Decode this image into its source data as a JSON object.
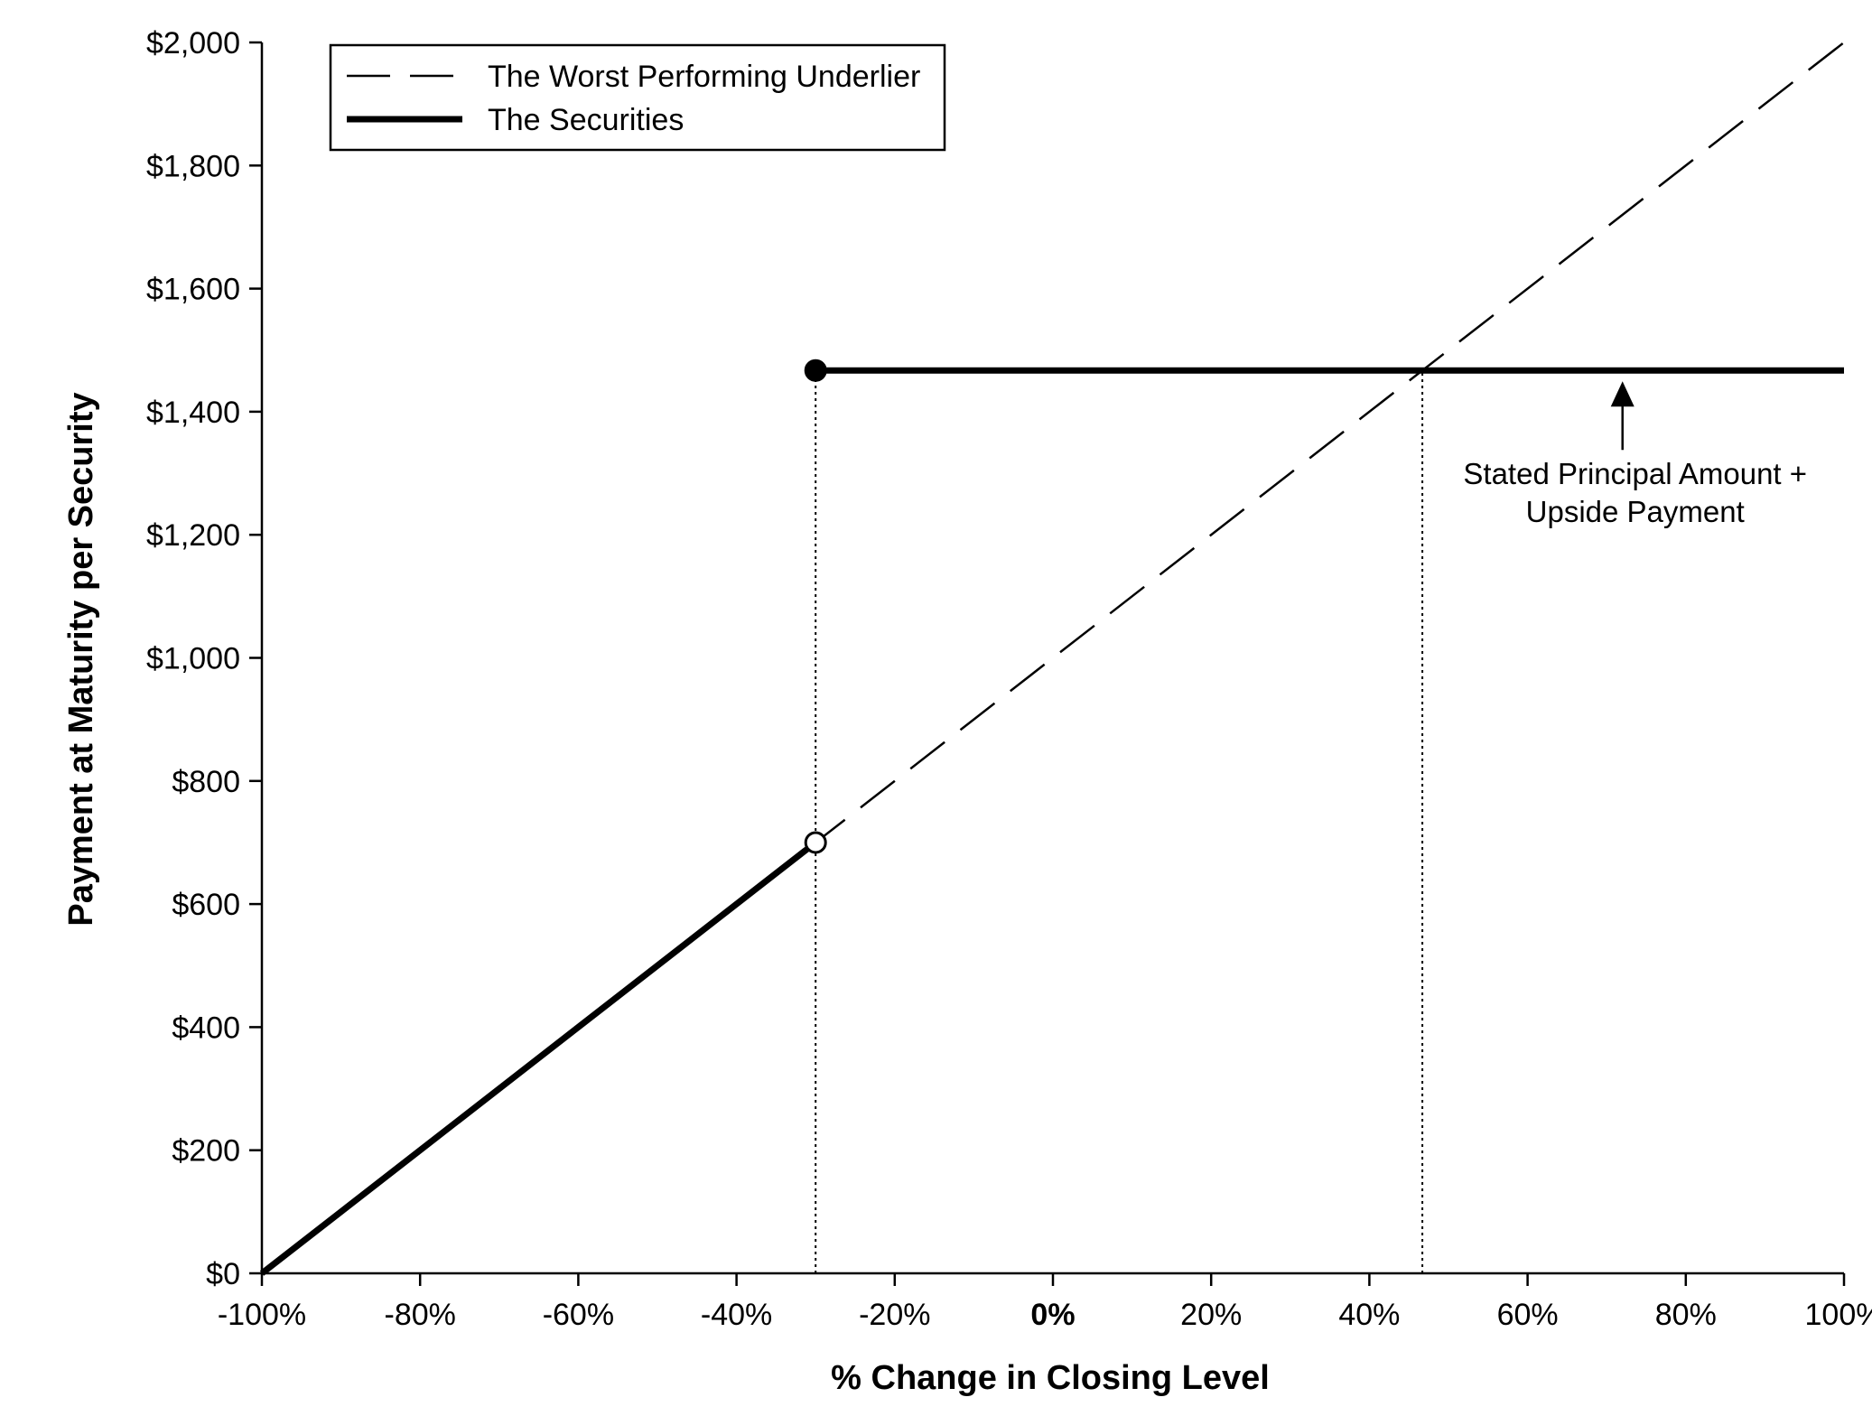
{
  "chart_data": {
    "type": "line",
    "xlabel": "% Change in Closing Level",
    "ylabel": "Payment at Maturity per Security",
    "xlim": [
      -100,
      100
    ],
    "ylim": [
      0,
      2000
    ],
    "x_ticks": [
      -100,
      -80,
      -60,
      -40,
      -20,
      0,
      20,
      40,
      60,
      80,
      100
    ],
    "x_tick_labels": [
      "-100%",
      "-80%",
      "-60%",
      "-40%",
      "-20%",
      "0%",
      "20%",
      "40%",
      "60%",
      "80%",
      "100%"
    ],
    "y_ticks": [
      0,
      200,
      400,
      600,
      800,
      1000,
      1200,
      1400,
      1600,
      1800,
      2000
    ],
    "y_tick_labels": [
      "$0",
      "$200",
      "$400",
      "$600",
      "$800",
      "$1,000",
      "$1,200",
      "$1,400",
      "$1,600",
      "$1,800",
      "$2,000"
    ],
    "grid": false,
    "legend_position": "top-left",
    "series": [
      {
        "name": "The Worst Performing Underlier",
        "style": "dashed",
        "color": "#000000",
        "points": [
          [
            -100,
            0
          ],
          [
            100,
            2000
          ]
        ]
      },
      {
        "name": "The Securities",
        "style": "solid-thick",
        "color": "#000000",
        "segments": [
          [
            [
              -100,
              0
            ],
            [
              -30,
              700
            ]
          ],
          [
            [
              -30,
              1467
            ],
            [
              100,
              1467
            ]
          ]
        ]
      }
    ],
    "markers": [
      {
        "x": -30,
        "y": 1467,
        "fill": "filled"
      },
      {
        "x": -30,
        "y": 700,
        "fill": "open"
      }
    ],
    "reference_lines": [
      {
        "x": -30,
        "y_from": 0,
        "y_to": 1467,
        "style": "dotted"
      },
      {
        "x": 46.7,
        "y_from": 0,
        "y_to": 1467,
        "style": "dotted"
      }
    ],
    "annotations": [
      {
        "lines": [
          "Stated Principal Amount +",
          "Upside Payment"
        ],
        "arrow_to": {
          "x": 72,
          "y": 1467
        }
      }
    ]
  }
}
